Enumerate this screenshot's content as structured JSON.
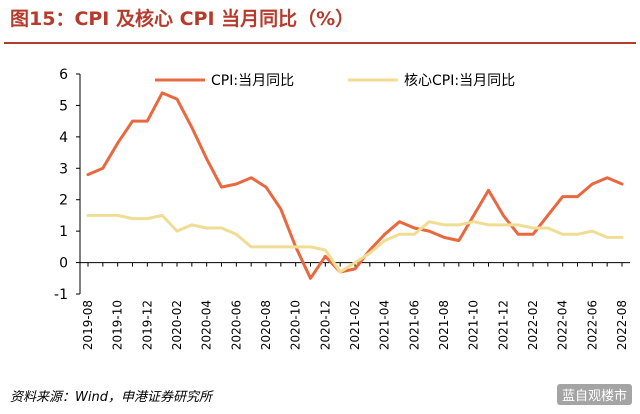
{
  "title": "图15：CPI 及核心 CPI 当月同比（%）",
  "source": "资料来源：Wind，申港证券研究所",
  "watermark": "蓝自观楼市",
  "colors": {
    "cpi": "#e9683f",
    "core_cpi": "#f0dd94",
    "title": "#b53b2c",
    "axis": "#000000"
  },
  "chart_data": {
    "type": "line",
    "grid": false,
    "legend_position": "top",
    "ylim": [
      -1,
      6
    ],
    "yticks": [
      -1,
      0,
      1,
      2,
      3,
      4,
      5,
      6
    ],
    "ytick_labels": [
      "-1",
      "0",
      "1",
      "2",
      "3",
      "4",
      "5",
      "6"
    ],
    "x": [
      "2019-08",
      "2019-09",
      "2019-10",
      "2019-11",
      "2019-12",
      "2020-01",
      "2020-02",
      "2020-03",
      "2020-04",
      "2020-05",
      "2020-06",
      "2020-07",
      "2020-08",
      "2020-09",
      "2020-10",
      "2020-11",
      "2020-12",
      "2021-01",
      "2021-02",
      "2021-03",
      "2021-04",
      "2021-05",
      "2021-06",
      "2021-07",
      "2021-08",
      "2021-09",
      "2021-10",
      "2021-11",
      "2021-12",
      "2022-01",
      "2022-02",
      "2022-03",
      "2022-04",
      "2022-05",
      "2022-06",
      "2022-07",
      "2022-08"
    ],
    "xtick_labels": [
      "2019-08",
      "2019-10",
      "2019-12",
      "2020-02",
      "2020-04",
      "2020-06",
      "2020-08",
      "2020-10",
      "2020-12",
      "2021-02",
      "2021-04",
      "2021-06",
      "2021-08",
      "2021-10",
      "2021-12",
      "2022-02",
      "2022-04",
      "2022-06",
      "2022-08"
    ],
    "series": [
      {
        "name": "CPI:当月同比",
        "values": [
          2.8,
          3.0,
          3.8,
          4.5,
          4.5,
          5.4,
          5.2,
          4.3,
          3.3,
          2.4,
          2.5,
          2.7,
          2.4,
          1.7,
          0.5,
          -0.5,
          0.2,
          -0.3,
          -0.2,
          0.4,
          0.9,
          1.3,
          1.1,
          1.0,
          0.8,
          0.7,
          1.5,
          2.3,
          1.5,
          0.9,
          0.9,
          1.5,
          2.1,
          2.1,
          2.5,
          2.7,
          2.5
        ]
      },
      {
        "name": "核心CPI:当月同比",
        "values": [
          1.5,
          1.5,
          1.5,
          1.4,
          1.4,
          1.5,
          1.0,
          1.2,
          1.1,
          1.1,
          0.9,
          0.5,
          0.5,
          0.5,
          0.5,
          0.5,
          0.4,
          -0.3,
          0.0,
          0.3,
          0.7,
          0.9,
          0.9,
          1.3,
          1.2,
          1.2,
          1.3,
          1.2,
          1.2,
          1.2,
          1.1,
          1.1,
          0.9,
          0.9,
          1.0,
          0.8,
          0.8
        ]
      }
    ]
  }
}
